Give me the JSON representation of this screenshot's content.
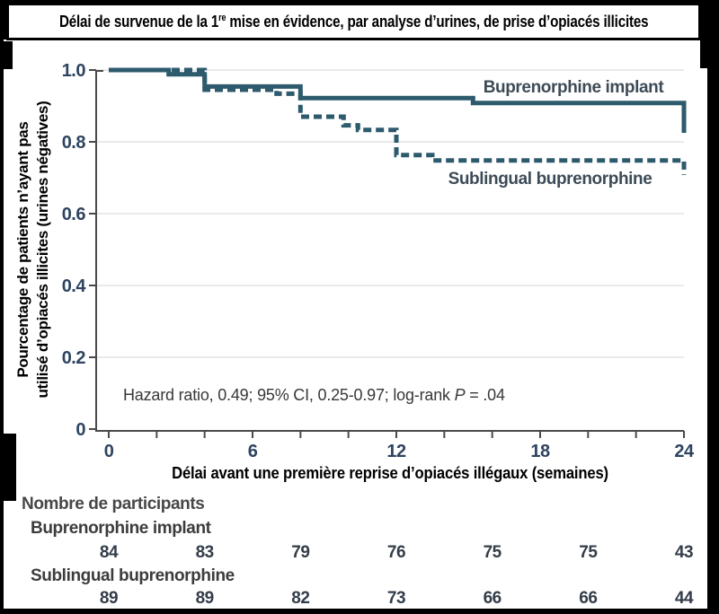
{
  "figure_title": {
    "prefix": "Délai de survenue de la 1",
    "superscript": "re",
    "suffix": " mise en évidence, par analyse d’urines, de prise d’opiacés illicites"
  },
  "chart_data": {
    "type": "line",
    "subtype": "kaplan-meier-step",
    "title": "",
    "grid": "horizontal-only",
    "legend_position": "labels-on-chart",
    "accent_color": "#2d5a6d",
    "gridline_color": "#e3e3e3",
    "axis_color": "#4a4a4a",
    "tick_label_color": "#2e4460",
    "x_axis": {
      "label": "Délai avant une première reprise d’opiacés illégaux (semaines)",
      "range": [
        0,
        24
      ],
      "major_ticks": [
        {
          "value": 0,
          "label": "0"
        },
        {
          "value": 6,
          "label": "6"
        },
        {
          "value": 12,
          "label": "12"
        },
        {
          "value": 18,
          "label": "18"
        },
        {
          "value": 24,
          "label": "24"
        }
      ],
      "minor_tick_interval": 2
    },
    "y_axis": {
      "label_line1": "Pourcentage de patients n’ayant pas",
      "label_line2": "utilisé d’opiacés illicites (urines négatives)",
      "range": [
        0,
        1
      ],
      "ticks": [
        {
          "value": 1.0,
          "label": "1.0"
        },
        {
          "value": 0.8,
          "label": "0.8"
        },
        {
          "value": 0.6,
          "label": "0.6"
        },
        {
          "value": 0.4,
          "label": "0.4"
        },
        {
          "value": 0.2,
          "label": "0.2"
        },
        {
          "value": 0,
          "label": "0"
        }
      ]
    },
    "annotation": {
      "prefix": "Hazard ratio, 0.49; 95% CI, 0.25-0.97; log-rank ",
      "italic": "P",
      "suffix": " = .04"
    },
    "series": [
      {
        "name": "Buprenorphine implant",
        "style": "solid",
        "label_center_x_week": 19.4,
        "points": [
          [
            0,
            1.0
          ],
          [
            2.5,
            1.0
          ],
          [
            2.5,
            0.988
          ],
          [
            4,
            0.988
          ],
          [
            4,
            0.954
          ],
          [
            8,
            0.954
          ],
          [
            8,
            0.922
          ],
          [
            15.2,
            0.922
          ],
          [
            15.2,
            0.908
          ],
          [
            24,
            0.908
          ],
          [
            24,
            0.825
          ]
        ]
      },
      {
        "name": "Sublingual buprenorphine",
        "style": "dashed",
        "label_center_x_week": 18.4,
        "points": [
          [
            0,
            1.0
          ],
          [
            4,
            1.0
          ],
          [
            4,
            0.945
          ],
          [
            7,
            0.945
          ],
          [
            7,
            0.934
          ],
          [
            8,
            0.934
          ],
          [
            8,
            0.87
          ],
          [
            9.8,
            0.87
          ],
          [
            9.8,
            0.846
          ],
          [
            10.4,
            0.846
          ],
          [
            10.4,
            0.833
          ],
          [
            12,
            0.833
          ],
          [
            12,
            0.763
          ],
          [
            13.5,
            0.763
          ],
          [
            13.5,
            0.748
          ],
          [
            24,
            0.748
          ],
          [
            24,
            0.708
          ]
        ]
      }
    ]
  },
  "risk_table": {
    "header": "Nombre de participants",
    "time_points": [
      0,
      4,
      8,
      12,
      16,
      20,
      24
    ],
    "rows": [
      {
        "label": "Buprenorphine implant",
        "values": [
          "84",
          "83",
          "79",
          "76",
          "75",
          "75",
          "43"
        ]
      },
      {
        "label": "Sublingual buprenorphine",
        "values": [
          "89",
          "89",
          "82",
          "73",
          "66",
          "66",
          "44"
        ]
      }
    ]
  }
}
